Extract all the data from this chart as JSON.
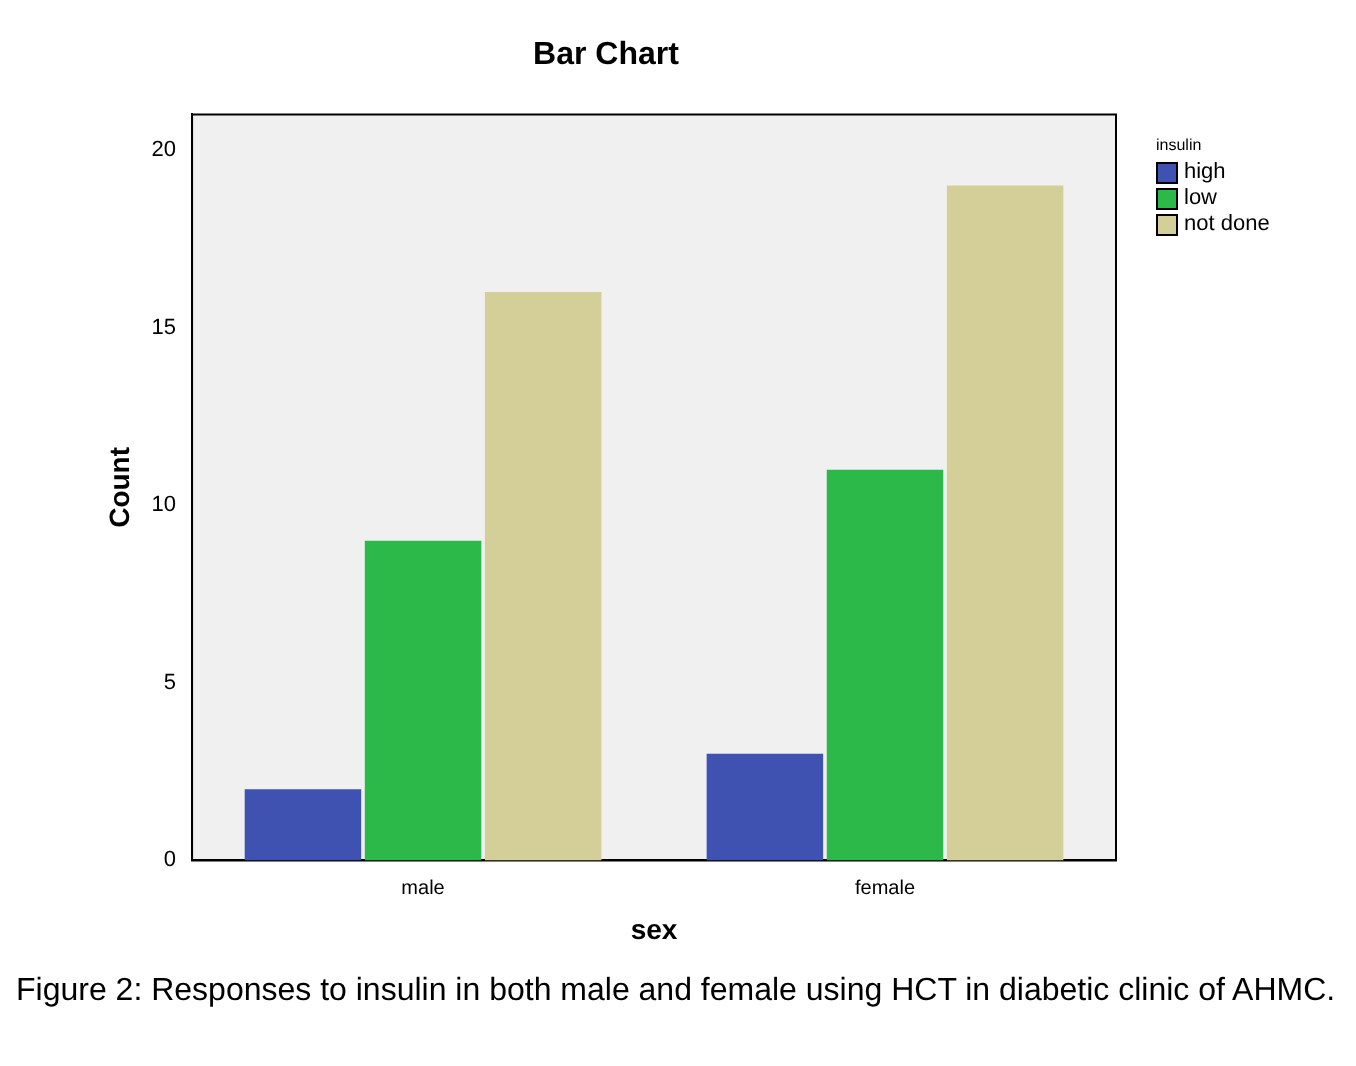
{
  "chart_data": {
    "type": "bar",
    "title": "Bar Chart",
    "xlabel": "sex",
    "ylabel": "Count",
    "legend_title": "insulin",
    "categories": [
      "male",
      "female"
    ],
    "series": [
      {
        "name": "high",
        "color": "#3f51b1",
        "values": [
          2,
          3
        ]
      },
      {
        "name": "low",
        "color": "#2db84a",
        "values": [
          9,
          11
        ]
      },
      {
        "name": "not done",
        "color": "#d4cf98",
        "values": [
          16,
          19
        ]
      }
    ],
    "ylim": [
      0,
      21
    ],
    "yticks": [
      0,
      5,
      10,
      15,
      20
    ],
    "grid": false,
    "legend": "top right",
    "annotations": [
      "Figure 2: Responses to insulin in both male and female using HCT in diabetic clinic of AHMC."
    ]
  }
}
